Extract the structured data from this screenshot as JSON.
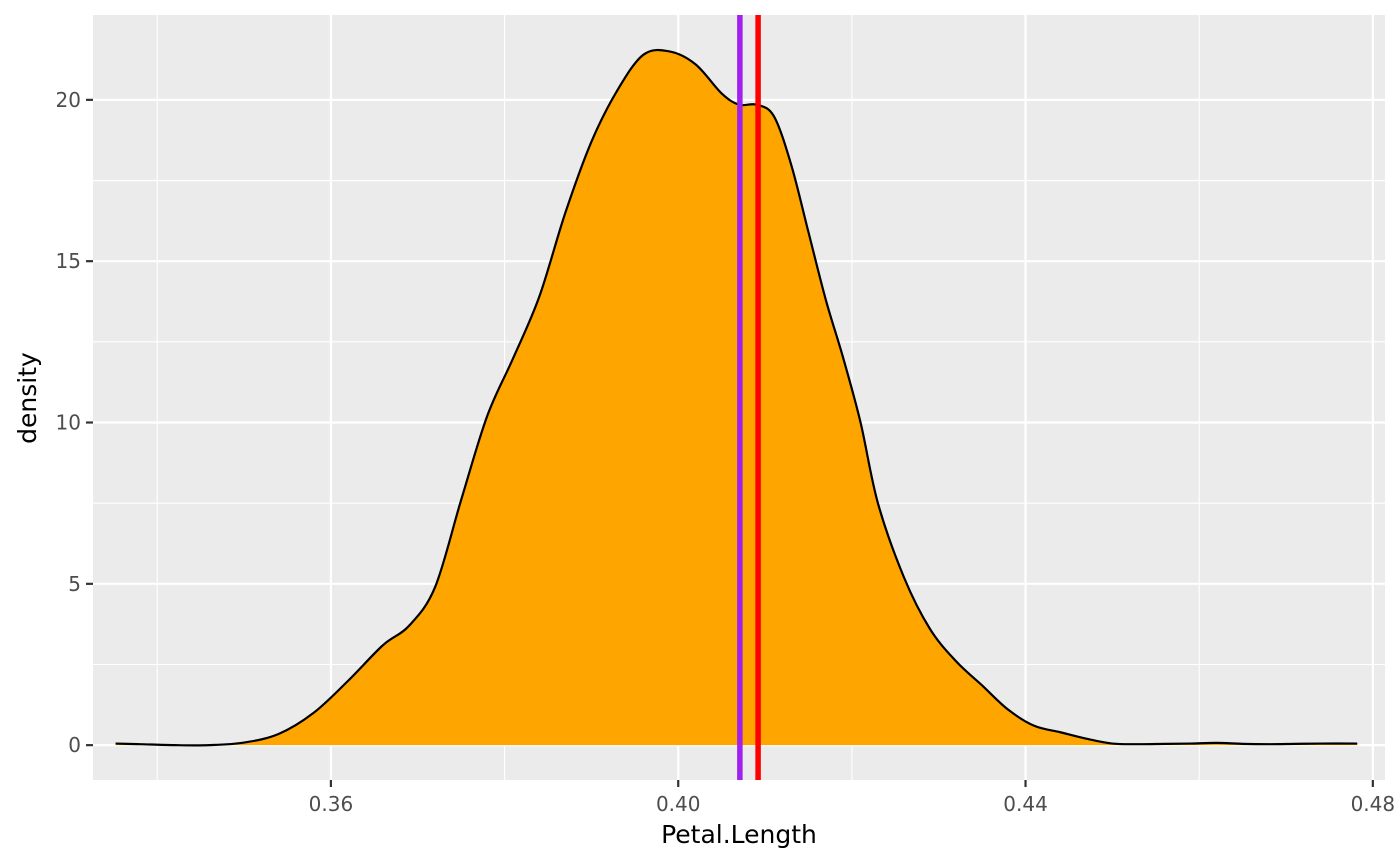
{
  "chart_data": {
    "type": "area",
    "xlabel": "Petal.Length",
    "ylabel": "density",
    "xlim": [
      0.3326,
      0.4814
    ],
    "ylim": [
      -1.08,
      22.63
    ],
    "x_ticks": [
      0.36,
      0.4,
      0.44,
      0.48
    ],
    "x_tick_labels": [
      "0.36",
      "0.40",
      "0.44",
      "0.48"
    ],
    "y_ticks": [
      0,
      5,
      10,
      15,
      20
    ],
    "y_tick_labels": [
      "0",
      "5",
      "10",
      "15",
      "20"
    ],
    "grid": true,
    "legend": "none",
    "fill_color": "#FFA500",
    "outline_color": "#000000",
    "panel_background": "#EBEBEB",
    "density": {
      "x": [
        0.3352,
        0.338,
        0.342,
        0.346,
        0.35,
        0.354,
        0.358,
        0.362,
        0.366,
        0.369,
        0.372,
        0.375,
        0.378,
        0.381,
        0.384,
        0.387,
        0.39,
        0.393,
        0.396,
        0.399,
        0.402,
        0.405,
        0.407,
        0.409,
        0.411,
        0.413,
        0.415,
        0.417,
        0.419,
        0.421,
        0.423,
        0.426,
        0.429,
        0.432,
        0.435,
        0.438,
        0.441,
        0.444,
        0.447,
        0.45,
        0.453,
        0.456,
        0.459,
        0.462,
        0.465,
        0.468,
        0.471,
        0.474,
        0.4782
      ],
      "y": [
        0.05,
        0.03,
        0.0,
        0.0,
        0.08,
        0.35,
        1.0,
        2.0,
        3.1,
        3.7,
        4.9,
        7.6,
        10.2,
        12.0,
        13.9,
        16.5,
        18.7,
        20.3,
        21.4,
        21.5,
        21.1,
        20.2,
        19.85,
        19.85,
        19.5,
        18.0,
        15.9,
        13.8,
        12.0,
        10.0,
        7.5,
        5.2,
        3.6,
        2.6,
        1.85,
        1.1,
        0.6,
        0.4,
        0.2,
        0.05,
        0.03,
        0.04,
        0.05,
        0.07,
        0.04,
        0.03,
        0.04,
        0.05,
        0.05
      ]
    },
    "vlines": [
      {
        "x": 0.4071,
        "color": "#A020F0"
      },
      {
        "x": 0.4092,
        "color": "#FF0000"
      }
    ]
  }
}
